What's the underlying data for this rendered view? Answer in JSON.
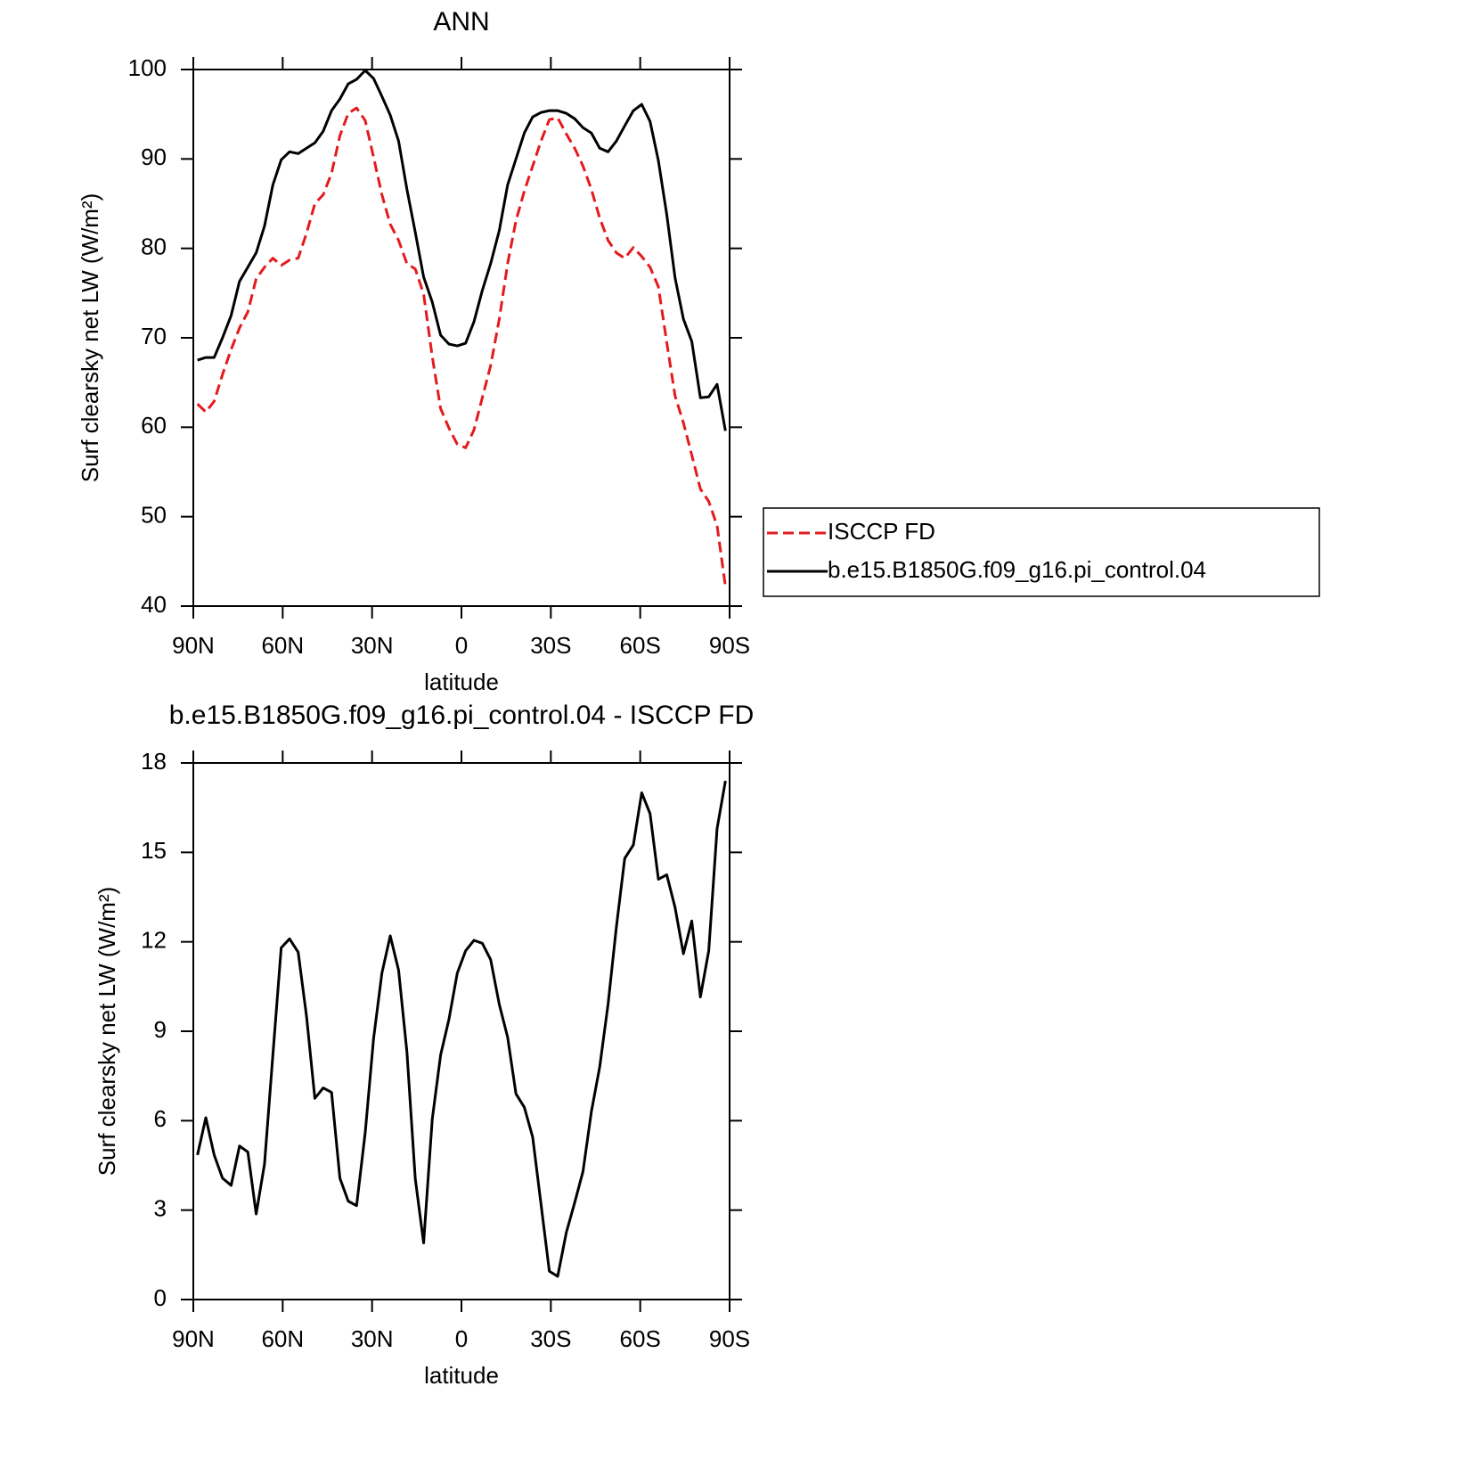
{
  "chart_data": [
    {
      "type": "line",
      "title": "ANN",
      "xlabel": "latitude",
      "ylabel": "Surf clearsky net LW (W/m²)",
      "x": [
        88.6,
        85.8,
        83.0,
        80.2,
        77.3,
        74.5,
        71.7,
        68.9,
        66.1,
        63.3,
        60.5,
        57.7,
        54.8,
        52.0,
        49.2,
        46.4,
        43.6,
        40.8,
        38.0,
        35.2,
        32.3,
        29.5,
        26.7,
        23.9,
        21.1,
        18.3,
        15.5,
        12.7,
        9.8,
        7.0,
        4.2,
        1.4,
        -1.4,
        -4.2,
        -7.0,
        -9.8,
        -12.7,
        -15.5,
        -18.3,
        -21.1,
        -23.9,
        -26.7,
        -29.5,
        -32.3,
        -35.2,
        -38.0,
        -40.8,
        -43.6,
        -46.4,
        -49.2,
        -52.0,
        -54.8,
        -57.7,
        -60.5,
        -63.3,
        -66.1,
        -68.9,
        -71.7,
        -74.5,
        -77.3,
        -80.2,
        -83.0,
        -85.8,
        -88.6
      ],
      "series": [
        {
          "name": "ISCCP FD",
          "color": "#e41a1c",
          "dash": true,
          "values": [
            62.6,
            61.7,
            62.9,
            65.9,
            68.7,
            71.1,
            72.9,
            76.6,
            77.9,
            78.9,
            78.1,
            78.7,
            78.9,
            81.7,
            85.0,
            86.0,
            88.4,
            92.6,
            95.1,
            95.7,
            94.3,
            90.2,
            86.0,
            82.7,
            80.9,
            78.3,
            77.7,
            74.9,
            67.9,
            62.1,
            59.9,
            58.1,
            57.7,
            59.7,
            63.3,
            66.9,
            72.1,
            78.3,
            83.1,
            86.4,
            89.2,
            92.0,
            94.4,
            94.6,
            92.8,
            91.2,
            89.2,
            86.6,
            83.4,
            80.9,
            79.5,
            78.9,
            80.1,
            79.1,
            77.9,
            75.7,
            69.5,
            63.5,
            60.5,
            56.9,
            53.1,
            51.7,
            49.0,
            42.2
          ]
        },
        {
          "name": "b.e15.B1850G.f09_g16.pi_control.04",
          "color": "#000000",
          "dash": false,
          "values": [
            67.5,
            67.8,
            67.8,
            70.0,
            72.5,
            76.3,
            77.9,
            79.5,
            82.5,
            87.1,
            89.9,
            90.8,
            90.6,
            91.2,
            91.8,
            93.1,
            95.4,
            96.7,
            98.4,
            98.9,
            99.9,
            99.0,
            97.0,
            94.9,
            92.0,
            86.6,
            81.8,
            76.8,
            74.0,
            70.3,
            69.3,
            69.1,
            69.4,
            71.8,
            75.3,
            78.3,
            82.0,
            87.1,
            90.0,
            92.9,
            94.7,
            95.2,
            95.4,
            95.4,
            95.1,
            94.5,
            93.5,
            92.9,
            91.2,
            90.8,
            92.0,
            93.7,
            95.4,
            96.1,
            94.2,
            89.8,
            83.8,
            76.7,
            72.1,
            69.6,
            63.3,
            63.4,
            64.8,
            59.6
          ]
        }
      ],
      "xlim": [
        90,
        -90
      ],
      "xticks": [
        {
          "value": 90,
          "label": "90N"
        },
        {
          "value": 60,
          "label": "60N"
        },
        {
          "value": 30,
          "label": "30N"
        },
        0,
        {
          "value": -30,
          "label": "30S"
        },
        {
          "value": -60,
          "label": "60S"
        },
        {
          "value": -90,
          "label": "90S"
        }
      ],
      "ylim": [
        40,
        100
      ],
      "yticks": [
        40,
        50,
        60,
        70,
        80,
        90,
        100
      ],
      "legend": "right"
    },
    {
      "type": "line",
      "title": "b.e15.B1850G.f09_g16.pi_control.04 - ISCCP FD",
      "xlabel": "latitude",
      "ylabel": "Surf clearsky net LW (W/m²)",
      "x": [
        88.6,
        85.8,
        83.0,
        80.2,
        77.3,
        74.5,
        71.7,
        68.9,
        66.1,
        63.3,
        60.5,
        57.7,
        54.8,
        52.0,
        49.2,
        46.4,
        43.6,
        40.8,
        38.0,
        35.2,
        32.3,
        29.5,
        26.7,
        23.9,
        21.1,
        18.3,
        15.5,
        12.7,
        9.8,
        7.0,
        4.2,
        1.4,
        -1.4,
        -4.2,
        -7.0,
        -9.8,
        -12.7,
        -15.5,
        -18.3,
        -21.1,
        -23.9,
        -26.7,
        -29.5,
        -32.3,
        -35.2,
        -38.0,
        -40.8,
        -43.6,
        -46.4,
        -49.2,
        -52.0,
        -54.8,
        -57.7,
        -60.5,
        -63.3,
        -66.1,
        -68.9,
        -71.7,
        -74.5,
        -77.3,
        -80.2,
        -83.0,
        -85.8,
        -88.6
      ],
      "color": "#000000",
      "values": [
        4.85,
        6.1,
        4.85,
        4.07,
        3.83,
        5.15,
        4.95,
        2.87,
        4.55,
        8.2,
        11.8,
        12.1,
        11.65,
        9.5,
        6.75,
        7.1,
        6.95,
        4.07,
        3.3,
        3.15,
        5.6,
        8.75,
        10.95,
        12.2,
        11.05,
        8.3,
        4.05,
        1.9,
        6.05,
        8.2,
        9.4,
        10.95,
        11.7,
        12.05,
        11.95,
        11.4,
        9.9,
        8.8,
        6.9,
        6.45,
        5.45,
        3.2,
        0.95,
        0.78,
        2.25,
        3.25,
        4.3,
        6.3,
        7.8,
        9.9,
        12.5,
        14.8,
        15.25,
        17.0,
        16.3,
        14.1,
        14.25,
        13.15,
        11.6,
        12.7,
        10.15,
        11.7,
        15.8,
        17.4
      ],
      "xlim": [
        90,
        -90
      ],
      "xticks": [
        {
          "value": 90,
          "label": "90N"
        },
        {
          "value": 60,
          "label": "60N"
        },
        {
          "value": 30,
          "label": "30N"
        },
        0,
        {
          "value": -30,
          "label": "30S"
        },
        {
          "value": -60,
          "label": "60S"
        },
        {
          "value": -90,
          "label": "90S"
        }
      ],
      "ylim": [
        0,
        18
      ],
      "yticks": [
        0,
        3,
        6,
        9,
        12,
        15,
        18
      ]
    }
  ]
}
